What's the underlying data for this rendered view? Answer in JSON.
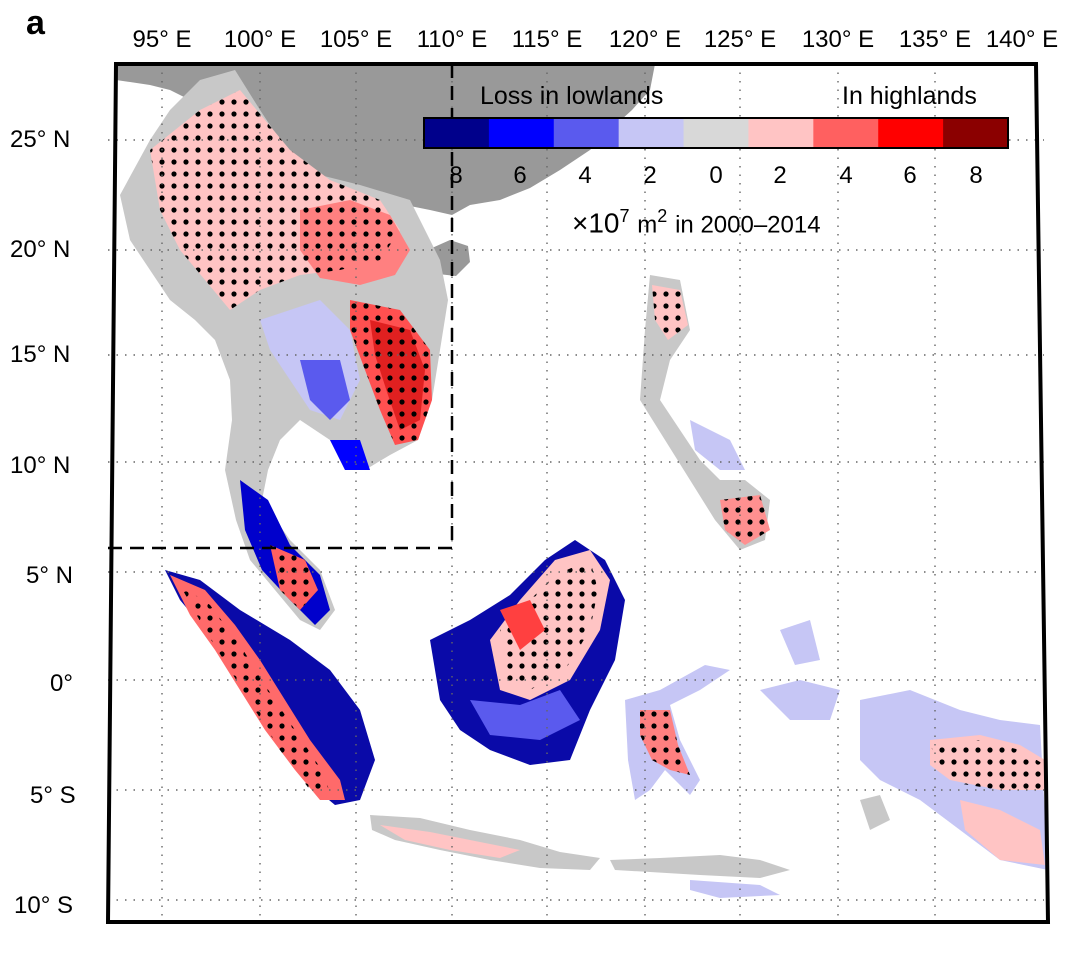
{
  "panel_label": "a",
  "lon_labels": [
    "95° E",
    "100° E",
    "105° E",
    "110° E",
    "115° E",
    "120° E",
    "125° E",
    "130° E",
    "135° E",
    "140° E"
  ],
  "lat_labels": [
    "25° N",
    "20° N",
    "15° N",
    "10° N",
    "5° N",
    "0°",
    "5° S",
    "10° S"
  ],
  "colorbar": {
    "left_label": "Loss in lowlands",
    "right_label": "In highlands",
    "ticks": [
      "8",
      "6",
      "4",
      "2",
      "0",
      "2",
      "4",
      "6",
      "8"
    ],
    "colors": [
      "#00008b",
      "#0000ff",
      "#5a5aee",
      "#c6c6f5",
      "#d8d8d8",
      "#ffc4c4",
      "#ff6060",
      "#ff0000",
      "#8b0000"
    ],
    "unit_prefix": "×10",
    "unit_exp": "7",
    "unit_m": "m",
    "unit_m_exp": "2",
    "unit_period": "in 2000–2014"
  },
  "colors": {
    "land_background": "#999999",
    "frame": "#000000",
    "grid": "#666666"
  }
}
